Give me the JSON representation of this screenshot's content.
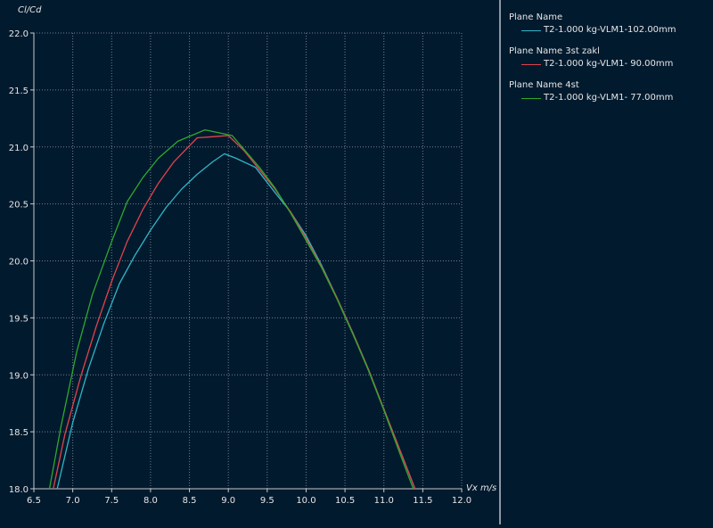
{
  "chart_data": {
    "type": "line",
    "ylabel": "Cl/Cd",
    "xlabel": "Vx m/s",
    "xlim": [
      6.5,
      12.0
    ],
    "ylim": [
      18.0,
      22.0
    ],
    "xticks": [
      "6.5",
      "7.0",
      "7.5",
      "8.0",
      "8.5",
      "9.0",
      "9.5",
      "10.0",
      "10.5",
      "11.0",
      "11.5",
      "12.0"
    ],
    "yticks": [
      "18.0",
      "18.5",
      "19.0",
      "19.5",
      "20.0",
      "20.5",
      "21.0",
      "21.5",
      "22.0"
    ],
    "grid": true,
    "legend_position": "right panel",
    "series": [
      {
        "name": "Plane Name",
        "label": "T2-1.000 kg-VLM1-102.00mm",
        "color": "#2fb5c8",
        "x": [
          6.8,
          7.0,
          7.2,
          7.4,
          7.6,
          7.8,
          8.0,
          8.2,
          8.4,
          8.6,
          8.8,
          8.95,
          9.1,
          9.35,
          9.6,
          9.8,
          10.0,
          10.2,
          10.4,
          10.6,
          10.8,
          11.0,
          11.2,
          11.4,
          11.5
        ],
        "y": [
          18.0,
          18.58,
          19.05,
          19.45,
          19.8,
          20.05,
          20.27,
          20.47,
          20.63,
          20.76,
          20.87,
          20.94,
          20.9,
          20.82,
          20.6,
          20.43,
          20.22,
          19.96,
          19.67,
          19.37,
          19.05,
          18.7,
          18.35,
          18.0,
          17.82
        ]
      },
      {
        "name": "Plane Name 3st zakl",
        "label": "T2-1.000 kg-VLM1- 90.00mm",
        "color": "#e0444c",
        "x": [
          6.75,
          6.9,
          7.1,
          7.3,
          7.5,
          7.7,
          7.9,
          8.1,
          8.3,
          8.6,
          8.8,
          9.0,
          9.2,
          9.4,
          9.6,
          9.8,
          10.0,
          10.2,
          10.4,
          10.6,
          10.8,
          11.0,
          11.2,
          11.4,
          11.5
        ],
        "y": [
          18.0,
          18.48,
          18.98,
          19.42,
          19.82,
          20.17,
          20.45,
          20.68,
          20.87,
          21.08,
          21.09,
          21.1,
          20.97,
          20.8,
          20.63,
          20.43,
          20.2,
          19.95,
          19.67,
          19.37,
          19.05,
          18.7,
          18.35,
          18.0,
          17.82
        ]
      },
      {
        "name": "Plane Name 4st",
        "label": "T2-1.000 kg-VLM1- 77.00mm",
        "color": "#2ea82e",
        "x": [
          6.7,
          6.85,
          7.05,
          7.25,
          7.5,
          7.7,
          7.9,
          8.1,
          8.35,
          8.7,
          9.05,
          9.2,
          9.4,
          9.6,
          9.8,
          10.0,
          10.2,
          10.4,
          10.6,
          10.8,
          11.0,
          11.2,
          11.4,
          11.5
        ],
        "y": [
          18.0,
          18.55,
          19.2,
          19.7,
          20.17,
          20.52,
          20.73,
          20.9,
          21.05,
          21.15,
          21.1,
          20.98,
          20.82,
          20.64,
          20.42,
          20.18,
          19.94,
          19.66,
          19.36,
          19.04,
          18.69,
          18.32,
          17.96,
          17.82
        ]
      }
    ]
  }
}
